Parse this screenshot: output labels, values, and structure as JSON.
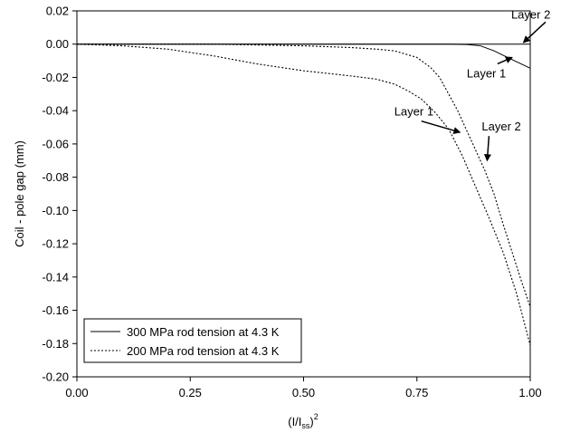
{
  "chart_data": {
    "type": "line",
    "xlabel": "(I/I",
    "xlabel_sub": "ss",
    "xlabel_close": ")",
    "xlabel_sup": "2",
    "ylabel": "Coil - pole gap (mm)",
    "xlim": [
      0,
      1
    ],
    "ylim": [
      -0.2,
      0.02
    ],
    "x_ticks": [
      0,
      0.25,
      0.5,
      0.75,
      1
    ],
    "x_tick_labels": [
      "0.00",
      "0.25",
      "0.50",
      "0.75",
      "1.00"
    ],
    "y_ticks": [
      0.02,
      0,
      -0.02,
      -0.04,
      -0.06,
      -0.08,
      -0.1,
      -0.12,
      -0.14,
      -0.16,
      -0.18,
      -0.2
    ],
    "y_tick_labels": [
      "0.02",
      "0.00",
      "-0.02",
      "-0.04",
      "-0.06",
      "-0.08",
      "-0.10",
      "-0.12",
      "-0.14",
      "-0.16",
      "-0.18",
      "-0.20"
    ],
    "grid": false,
    "legend_position": "bottom-left",
    "series": [
      {
        "name": "300 MPa rod tension at 4.3 K",
        "style": "solid",
        "curves": [
          {
            "layer": "Layer 2",
            "points": [
              [
                0,
                0
              ],
              [
                0.5,
                0
              ],
              [
                0.9,
                0
              ],
              [
                1.0,
                0
              ]
            ]
          },
          {
            "layer": "Layer 1",
            "points": [
              [
                0,
                0
              ],
              [
                0.5,
                0
              ],
              [
                0.82,
                0
              ],
              [
                0.86,
                -0.0002
              ],
              [
                0.89,
                -0.001
              ],
              [
                0.92,
                -0.004
              ],
              [
                0.95,
                -0.008
              ],
              [
                1.0,
                -0.0145
              ]
            ]
          }
        ]
      },
      {
        "name": "200 MPa rod tension at 4.3 K",
        "style": "dotted",
        "curves": [
          {
            "layer": "Layer 2",
            "points": [
              [
                0,
                0
              ],
              [
                0.1,
                0
              ],
              [
                0.2,
                0
              ],
              [
                0.3,
                0
              ],
              [
                0.4,
                -0.0005
              ],
              [
                0.5,
                -0.001
              ],
              [
                0.6,
                -0.002
              ],
              [
                0.66,
                -0.003
              ],
              [
                0.7,
                -0.004
              ],
              [
                0.75,
                -0.008
              ],
              [
                0.78,
                -0.014
              ],
              [
                0.8,
                -0.02
              ],
              [
                0.82,
                -0.03
              ],
              [
                0.84,
                -0.04
              ],
              [
                0.86,
                -0.052
              ],
              [
                0.88,
                -0.064
              ],
              [
                0.9,
                -0.076
              ],
              [
                0.92,
                -0.09
              ],
              [
                0.94,
                -0.108
              ],
              [
                0.96,
                -0.125
              ],
              [
                0.98,
                -0.142
              ],
              [
                1.0,
                -0.158
              ]
            ]
          },
          {
            "layer": "Layer 1",
            "points": [
              [
                0,
                0
              ],
              [
                0.1,
                -0.001
              ],
              [
                0.2,
                -0.003
              ],
              [
                0.3,
                -0.007
              ],
              [
                0.4,
                -0.012
              ],
              [
                0.5,
                -0.016
              ],
              [
                0.6,
                -0.019
              ],
              [
                0.66,
                -0.021
              ],
              [
                0.7,
                -0.024
              ],
              [
                0.73,
                -0.028
              ],
              [
                0.76,
                -0.033
              ],
              [
                0.79,
                -0.041
              ],
              [
                0.82,
                -0.051
              ],
              [
                0.85,
                -0.067
              ],
              [
                0.88,
                -0.086
              ],
              [
                0.91,
                -0.105
              ],
              [
                0.94,
                -0.125
              ],
              [
                0.97,
                -0.15
              ],
              [
                1.0,
                -0.181
              ]
            ]
          }
        ]
      }
    ],
    "annotations": [
      {
        "text": "Layer 2",
        "text_at": [
          0.958,
          0.0155
        ],
        "arrow_to": [
          0.985,
          0.001
        ]
      },
      {
        "text": "Layer 1",
        "text_at": [
          0.86,
          -0.02
        ],
        "arrow_to": [
          0.96,
          -0.008
        ]
      },
      {
        "text": "Layer 1",
        "text_at": [
          0.7,
          -0.043
        ],
        "arrow_to": [
          0.845,
          -0.053
        ]
      },
      {
        "text": "Layer 2",
        "text_at": [
          0.893,
          -0.052
        ],
        "arrow_to": [
          0.905,
          -0.07
        ]
      }
    ]
  }
}
